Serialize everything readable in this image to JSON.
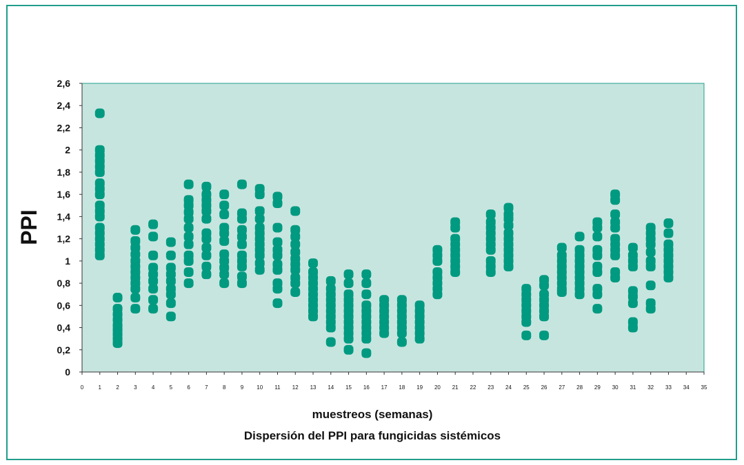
{
  "chart_data": {
    "type": "scatter",
    "title": "Dispersión del PPI para fungicidas  sistémicos",
    "xlabel": "muestreos (semanas)",
    "ylabel": "PPI",
    "xlim": [
      0,
      35
    ],
    "ylim": [
      0,
      2.6
    ],
    "xticks": [
      "0",
      "1",
      "2",
      "3",
      "4",
      "5",
      "6",
      "7",
      "8",
      "9",
      "10",
      "11",
      "12",
      "13",
      "14",
      "15",
      "16",
      "17",
      "18",
      "19",
      "20",
      "21",
      "22",
      "23",
      "24",
      "25",
      "26",
      "27",
      "28",
      "29",
      "30",
      "31",
      "32",
      "33",
      "34",
      "35"
    ],
    "yticks": [
      "0",
      "0,2",
      "0,4",
      "0,6",
      "0,8",
      "1",
      "1,2",
      "1,4",
      "1,6",
      "1,8",
      "2",
      "2,2",
      "2,4",
      "2,6"
    ],
    "grid": false,
    "legend": "none",
    "colors": {
      "plot_bg": "#c7e5df",
      "marker": "#009a80",
      "frame": "#1f9e8c"
    },
    "series": [
      {
        "values": [
          {
            "x": 1,
            "y": [
              2.33,
              2.0,
              1.95,
              1.9,
              1.85,
              1.8,
              1.7,
              1.65,
              1.6,
              1.5,
              1.45,
              1.4,
              1.3,
              1.25,
              1.2,
              1.15,
              1.1,
              1.05
            ]
          },
          {
            "x": 2,
            "y": [
              0.67,
              0.57,
              0.52,
              0.47,
              0.42,
              0.38,
              0.34,
              0.3,
              0.26
            ]
          },
          {
            "x": 3,
            "y": [
              1.28,
              1.18,
              1.12,
              1.06,
              1.0,
              0.95,
              0.9,
              0.85,
              0.8,
              0.75,
              0.67,
              0.57
            ]
          },
          {
            "x": 4,
            "y": [
              1.33,
              1.22,
              1.05,
              0.94,
              0.88,
              0.82,
              0.75,
              0.65,
              0.57
            ]
          },
          {
            "x": 5,
            "y": [
              1.17,
              1.05,
              0.94,
              0.88,
              0.82,
              0.75,
              0.7,
              0.62,
              0.5
            ]
          },
          {
            "x": 6,
            "y": [
              1.69,
              1.55,
              1.5,
              1.44,
              1.38,
              1.3,
              1.22,
              1.15,
              1.05,
              1.0,
              0.9,
              0.8
            ]
          },
          {
            "x": 7,
            "y": [
              1.67,
              1.6,
              1.55,
              1.5,
              1.45,
              1.38,
              1.25,
              1.2,
              1.12,
              1.05,
              0.95,
              0.88
            ]
          },
          {
            "x": 8,
            "y": [
              1.6,
              1.5,
              1.42,
              1.3,
              1.25,
              1.18,
              1.06,
              1.0,
              0.94,
              0.88,
              0.8
            ]
          },
          {
            "x": 9,
            "y": [
              1.69,
              1.43,
              1.38,
              1.28,
              1.22,
              1.15,
              1.05,
              1.0,
              0.95,
              0.86,
              0.8
            ]
          },
          {
            "x": 10,
            "y": [
              1.65,
              1.6,
              1.45,
              1.38,
              1.3,
              1.25,
              1.2,
              1.15,
              1.1,
              1.05,
              0.98,
              0.92
            ]
          },
          {
            "x": 11,
            "y": [
              1.58,
              1.52,
              1.3,
              1.17,
              1.1,
              1.05,
              0.97,
              0.92,
              0.8,
              0.75,
              0.62
            ]
          },
          {
            "x": 12,
            "y": [
              1.45,
              1.28,
              1.22,
              1.15,
              1.08,
              1.02,
              0.97,
              0.92,
              0.85,
              0.8,
              0.72
            ]
          },
          {
            "x": 13,
            "y": [
              0.98,
              0.9,
              0.85,
              0.8,
              0.75,
              0.7,
              0.65,
              0.6,
              0.55,
              0.5
            ]
          },
          {
            "x": 14,
            "y": [
              0.82,
              0.75,
              0.7,
              0.65,
              0.6,
              0.55,
              0.5,
              0.45,
              0.4,
              0.27
            ]
          },
          {
            "x": 15,
            "y": [
              0.88,
              0.8,
              0.7,
              0.65,
              0.6,
              0.55,
              0.5,
              0.45,
              0.4,
              0.35,
              0.3,
              0.2
            ]
          },
          {
            "x": 16,
            "y": [
              0.88,
              0.8,
              0.7,
              0.6,
              0.55,
              0.5,
              0.45,
              0.4,
              0.35,
              0.3,
              0.17
            ]
          },
          {
            "x": 17,
            "y": [
              0.65,
              0.6,
              0.55,
              0.5,
              0.45,
              0.4,
              0.35
            ]
          },
          {
            "x": 18,
            "y": [
              0.65,
              0.6,
              0.55,
              0.5,
              0.45,
              0.4,
              0.35,
              0.27
            ]
          },
          {
            "x": 19,
            "y": [
              0.6,
              0.55,
              0.5,
              0.45,
              0.4,
              0.35,
              0.3
            ]
          },
          {
            "x": 20,
            "y": [
              1.1,
              1.05,
              1.0,
              0.9,
              0.85,
              0.8,
              0.75,
              0.7
            ]
          },
          {
            "x": 21,
            "y": [
              1.35,
              1.3,
              1.2,
              1.15,
              1.1,
              1.05,
              1.0,
              0.95,
              0.9
            ]
          },
          {
            "x": 23,
            "y": [
              1.42,
              1.35,
              1.3,
              1.25,
              1.2,
              1.15,
              1.1,
              1.0,
              0.95,
              0.9
            ]
          },
          {
            "x": 24,
            "y": [
              1.48,
              1.42,
              1.38,
              1.32,
              1.25,
              1.2,
              1.15,
              1.1,
              1.05,
              1.0,
              0.95
            ]
          },
          {
            "x": 25,
            "y": [
              0.75,
              0.7,
              0.65,
              0.6,
              0.55,
              0.5,
              0.45,
              0.33
            ]
          },
          {
            "x": 26,
            "y": [
              0.83,
              0.78,
              0.7,
              0.65,
              0.6,
              0.55,
              0.5,
              0.33
            ]
          },
          {
            "x": 27,
            "y": [
              1.12,
              1.05,
              1.0,
              0.95,
              0.9,
              0.85,
              0.8,
              0.75,
              0.72
            ]
          },
          {
            "x": 28,
            "y": [
              1.22,
              1.1,
              1.05,
              1.0,
              0.95,
              0.9,
              0.85,
              0.8,
              0.75,
              0.7
            ]
          },
          {
            "x": 29,
            "y": [
              1.35,
              1.3,
              1.22,
              1.1,
              1.05,
              0.95,
              0.9,
              0.75,
              0.7,
              0.57
            ]
          },
          {
            "x": 30,
            "y": [
              1.6,
              1.55,
              1.42,
              1.35,
              1.3,
              1.2,
              1.15,
              1.1,
              1.05,
              0.9,
              0.85
            ]
          },
          {
            "x": 31,
            "y": [
              1.12,
              1.05,
              1.0,
              0.95,
              0.73,
              0.68,
              0.62,
              0.45,
              0.4
            ]
          },
          {
            "x": 32,
            "y": [
              1.3,
              1.25,
              1.2,
              1.15,
              1.08,
              1.0,
              0.95,
              0.78,
              0.62,
              0.57
            ]
          },
          {
            "x": 33,
            "y": [
              1.34,
              1.25,
              1.15,
              1.1,
              1.05,
              1.0,
              0.95,
              0.9,
              0.85
            ]
          }
        ]
      }
    ]
  }
}
